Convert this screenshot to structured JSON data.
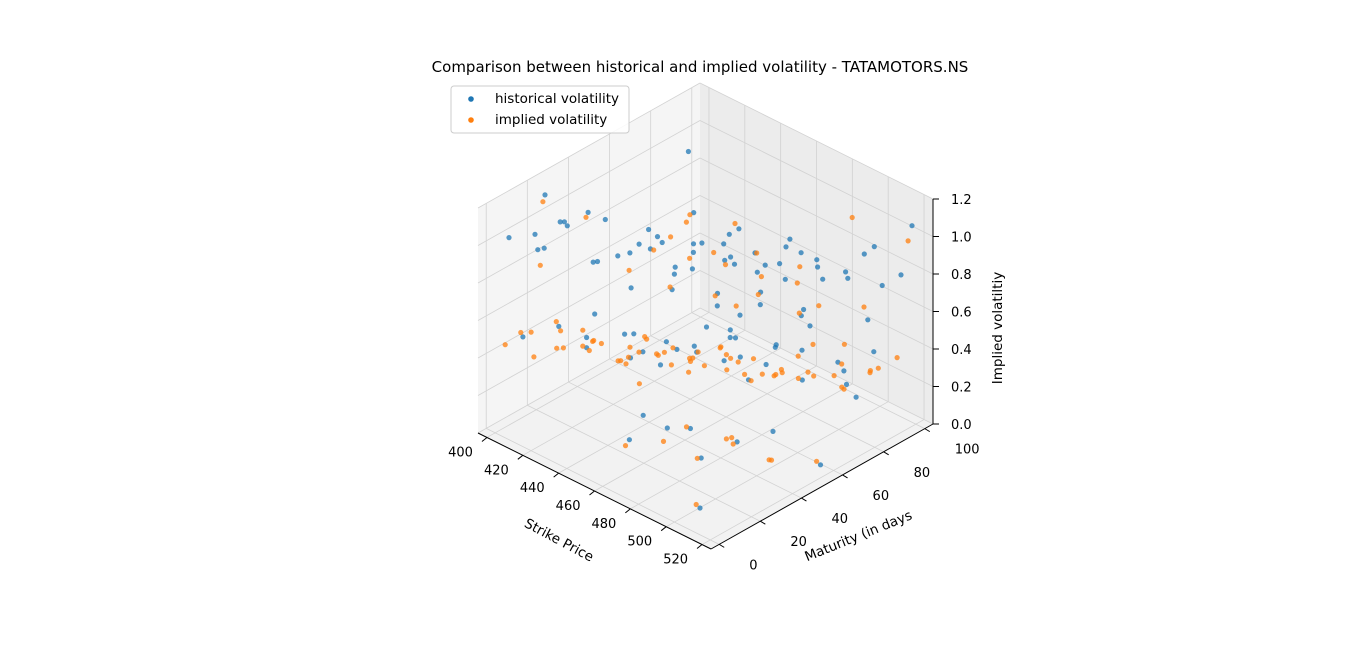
{
  "chart_data": {
    "type": "scatter",
    "projection": "3d",
    "title": "Comparison between historical and implied volatility - TATAMOTORS.NS",
    "xlabel": "Strike Price",
    "ylabel": "Maturity (in days",
    "zlabel": "Implied volatiltiy",
    "xlim": [
      395,
      525
    ],
    "ylim": [
      -4,
      104
    ],
    "zlim": [
      0,
      1.2
    ],
    "x_ticks": [
      400,
      420,
      440,
      460,
      480,
      500,
      520
    ],
    "y_ticks": [
      0,
      20,
      40,
      60,
      80,
      100
    ],
    "z_ticks": [
      0.0,
      0.2,
      0.4,
      0.6,
      0.8,
      1.0,
      1.2
    ],
    "x_tick_labels": [
      "400",
      "420",
      "440",
      "460",
      "480",
      "500",
      "520"
    ],
    "y_tick_labels": [
      "0",
      "20",
      "40",
      "60",
      "80",
      "100"
    ],
    "z_tick_labels": [
      "0.0",
      "0.2",
      "0.4",
      "0.6",
      "0.8",
      "1.0",
      "1.2"
    ],
    "grid": true,
    "legend_position": "upper-left",
    "series": [
      {
        "name": "historical volatility",
        "color": "#1f77b4",
        "x": [
          402,
          410,
          418,
          426,
          434,
          442,
          450,
          458,
          466,
          474,
          482,
          490,
          498,
          506,
          514,
          522,
          405,
          415,
          425,
          435,
          445,
          455,
          465,
          475,
          485,
          495,
          505,
          515,
          400,
          412,
          424,
          436,
          448,
          460,
          472,
          484,
          496,
          508,
          520,
          408,
          420,
          432,
          444,
          456,
          468,
          480,
          492,
          504,
          516,
          404,
          416,
          428,
          440,
          452,
          464,
          476,
          488,
          500,
          512,
          524,
          406,
          422,
          438,
          454,
          470,
          486,
          502,
          518,
          414,
          430,
          446,
          462,
          478,
          494,
          510,
          403,
          419,
          435,
          451,
          467,
          483,
          499,
          515,
          411,
          427,
          443,
          459,
          475,
          491,
          507,
          523,
          409,
          431,
          453,
          475,
          497,
          519,
          417,
          439,
          461,
          483,
          505
        ],
        "y": [
          5,
          12,
          18,
          25,
          30,
          38,
          44,
          50,
          57,
          63,
          70,
          78,
          85,
          92,
          98,
          8,
          15,
          22,
          28,
          35,
          42,
          48,
          55,
          61,
          67,
          74,
          80,
          88,
          94,
          3,
          10,
          17,
          24,
          31,
          40,
          46,
          53,
          59,
          65,
          72,
          79,
          86,
          93,
          100,
          6,
          14,
          20,
          27,
          34,
          41,
          49,
          56,
          62,
          69,
          76,
          83,
          90,
          97,
          2,
          11,
          19,
          26,
          33,
          39,
          47,
          54,
          60,
          68,
          75,
          82,
          89,
          96,
          4,
          13,
          21,
          29,
          37,
          45,
          52,
          58,
          66,
          73,
          81,
          87,
          95,
          7,
          16,
          23,
          32,
          43,
          51,
          64,
          71,
          77,
          84,
          91,
          99,
          9,
          36,
          58,
          71,
          88
        ],
        "z": [
          1.02,
          0.95,
          1.1,
          0.88,
          0.92,
          1.05,
          0.85,
          0.98,
          0.9,
          0.82,
          0.95,
          0.87,
          0.8,
          0.93,
          0.78,
          1.08,
          0.99,
          1.04,
          0.86,
          0.91,
          0.97,
          0.84,
          0.89,
          0.94,
          0.81,
          0.88,
          0.83,
          0.79,
          0.92,
          0.55,
          0.62,
          0.7,
          0.48,
          0.58,
          0.66,
          0.52,
          0.6,
          0.72,
          0.5,
          0.64,
          0.57,
          0.68,
          0.53,
          0.61,
          0.25,
          0.32,
          0.18,
          0.28,
          0.35,
          0.22,
          0.3,
          0.15,
          0.27,
          0.33,
          0.2,
          0.29,
          0.24,
          0.31,
          0.12,
          1.15,
          1.18,
          1.12,
          0.75,
          0.78,
          0.72,
          0.76,
          0.74,
          0.4,
          0.45,
          0.38,
          0.42,
          0.36,
          0.44,
          0.39,
          0.9,
          0.96,
          1.0,
          0.87,
          0.93,
          0.86,
          0.89,
          0.84,
          0.65,
          0.69,
          0.63,
          0.67,
          0.71,
          0.66,
          0.62,
          0.7,
          0.1,
          0.08,
          0.14,
          0.06,
          0.12,
          0.09,
          1.06,
          1.01,
          0.97,
          0.94,
          0.99,
          0.91
        ]
      },
      {
        "name": "implied volatility",
        "color": "#ff7f0e",
        "x": [
          401,
          409,
          417,
          425,
          433,
          441,
          449,
          457,
          465,
          473,
          481,
          489,
          497,
          505,
          513,
          521,
          404,
          414,
          424,
          434,
          444,
          454,
          464,
          474,
          484,
          494,
          504,
          514,
          400,
          412,
          424,
          436,
          448,
          460,
          472,
          484,
          496,
          508,
          520,
          407,
          419,
          431,
          443,
          455,
          467,
          479,
          491,
          503,
          515,
          403,
          415,
          427,
          439,
          451,
          463,
          475,
          487,
          499,
          511,
          523,
          406,
          422,
          438,
          454,
          470,
          486,
          502,
          518,
          413,
          429,
          445,
          461,
          477,
          493,
          509,
          402,
          418,
          434,
          450,
          466,
          482,
          498,
          514,
          410,
          426,
          442,
          458,
          474,
          490,
          506,
          522,
          408,
          430,
          452,
          474,
          496,
          518,
          416,
          438,
          460
        ],
        "y": [
          4,
          11,
          17,
          24,
          31,
          37,
          43,
          49,
          56,
          62,
          69,
          77,
          84,
          91,
          97,
          7,
          14,
          21,
          27,
          34,
          41,
          47,
          54,
          60,
          66,
          73,
          79,
          87,
          93,
          2,
          9,
          16,
          23,
          30,
          39,
          45,
          52,
          58,
          64,
          71,
          78,
          85,
          92,
          99,
          5,
          13,
          19,
          26,
          33,
          40,
          48,
          55,
          61,
          68,
          75,
          82,
          89,
          96,
          1,
          10,
          18,
          25,
          32,
          38,
          46,
          53,
          59,
          67,
          74,
          81,
          88,
          95,
          3,
          12,
          20,
          28,
          36,
          44,
          51,
          57,
          65,
          72,
          80,
          86,
          94,
          6,
          15,
          22,
          31,
          42,
          50,
          63,
          70,
          76,
          83,
          90,
          98,
          8,
          35,
          57
        ],
        "z": [
          0.45,
          0.38,
          0.52,
          0.41,
          0.35,
          0.48,
          0.33,
          0.4,
          0.3,
          0.36,
          0.28,
          0.42,
          0.31,
          0.27,
          0.34,
          0.5,
          0.47,
          0.39,
          0.44,
          0.32,
          0.37,
          0.29,
          0.43,
          0.26,
          0.33,
          0.3,
          0.24,
          0.35,
          0.55,
          0.58,
          0.51,
          0.56,
          0.49,
          0.53,
          0.46,
          0.5,
          0.44,
          0.48,
          0.42,
          0.57,
          0.54,
          0.52,
          0.47,
          0.45,
          0.22,
          0.25,
          0.18,
          0.27,
          0.2,
          0.23,
          0.16,
          0.21,
          0.19,
          0.24,
          0.15,
          0.26,
          0.17,
          0.2,
          0.14,
          1.2,
          1.15,
          1.1,
          0.85,
          0.8,
          0.78,
          0.82,
          0.76,
          0.62,
          0.65,
          0.6,
          0.63,
          0.59,
          0.61,
          0.4,
          0.37,
          0.43,
          0.34,
          0.39,
          0.32,
          0.36,
          0.3,
          0.7,
          0.72,
          0.68,
          0.66,
          0.71,
          0.64,
          0.67,
          0.69,
          0.1,
          0.12,
          0.08,
          0.11,
          0.09,
          0.13,
          1.05,
          0.98,
          0.92
        ]
      }
    ]
  }
}
